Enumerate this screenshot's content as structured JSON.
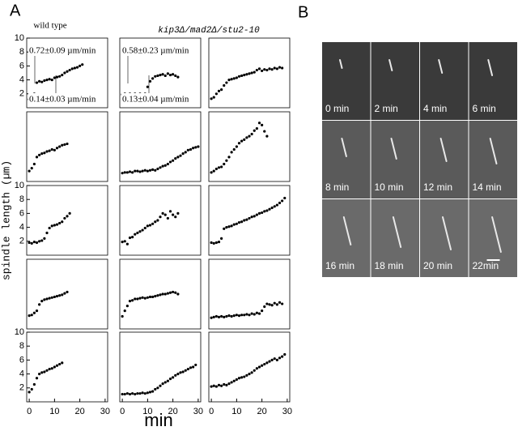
{
  "figure": {
    "panel_a": "A",
    "panel_b": "B",
    "y_label": "spindle length (µm)",
    "x_label": "min",
    "columns": [
      "wild type",
      "kip3Δ/mad2Δ/stu2-10"
    ],
    "frames": [
      "0 min",
      "2 min",
      "4 min",
      "6 min",
      "8 min",
      "10 min",
      "12 min",
      "14 min",
      "16 min",
      "18 min",
      "20 min",
      "22min"
    ]
  },
  "chart_data": [
    {
      "type": "scatter",
      "xlim": [
        -1,
        31
      ],
      "ylim": [
        0,
        10
      ],
      "yticks": [
        2,
        4,
        6,
        8,
        10
      ],
      "annotations": [
        "0.72±0.09 µm/min",
        "0.14±0.03 µm/min"
      ],
      "series": [
        {
          "color": "#000000",
          "x": [
            0,
            1,
            2,
            3,
            4,
            5,
            6,
            7,
            8,
            9,
            10,
            11,
            12,
            13,
            14,
            15,
            16,
            17,
            18,
            19,
            20,
            21
          ],
          "values": [
            1.2,
            1.6,
            2.0,
            3.6,
            3.8,
            3.7,
            3.9,
            4.0,
            4.1,
            4.0,
            4.3,
            4.4,
            4.5,
            4.7,
            5.0,
            5.2,
            5.4,
            5.6,
            5.7,
            5.8,
            6.0,
            6.2
          ]
        }
      ]
    },
    {
      "type": "scatter",
      "xlim": [
        -1,
        31
      ],
      "ylim": [
        0,
        10
      ],
      "annotations": [
        "0.58±0.23 µm/min",
        "0.13±0.04 µm/min"
      ],
      "series": [
        {
          "color": "#000000",
          "x": [
            0,
            1,
            2,
            3,
            4,
            5,
            6,
            7,
            8,
            9,
            10,
            11,
            12,
            13,
            14,
            15,
            16,
            17,
            18,
            19,
            20,
            21,
            22
          ],
          "values": [
            1.9,
            2.0,
            1.9,
            2.0,
            1.9,
            2.0,
            1.8,
            2.0,
            1.9,
            2.0,
            3.0,
            3.8,
            4.2,
            4.5,
            4.6,
            4.7,
            4.8,
            4.6,
            4.9,
            4.7,
            4.8,
            4.6,
            4.4
          ]
        }
      ]
    },
    {
      "type": "scatter",
      "xlim": [
        -1,
        31
      ],
      "ylim": [
        0,
        10
      ],
      "series": [
        {
          "color": "#000000",
          "x": [
            0,
            1,
            2,
            3,
            4,
            5,
            6,
            7,
            8,
            9,
            10,
            11,
            12,
            13,
            14,
            15,
            16,
            17,
            18,
            19,
            20,
            21,
            22,
            23,
            24,
            25,
            26,
            27,
            28
          ],
          "values": [
            1.3,
            1.5,
            2.0,
            2.4,
            2.6,
            3.2,
            3.6,
            4.0,
            4.1,
            4.2,
            4.3,
            4.5,
            4.6,
            4.7,
            4.8,
            4.9,
            5.0,
            5.1,
            5.4,
            5.6,
            5.3,
            5.5,
            5.4,
            5.6,
            5.5,
            5.7,
            5.6,
            5.8,
            5.7
          ]
        }
      ]
    },
    {
      "type": "scatter",
      "xlim": [
        -1,
        31
      ],
      "ylim": [
        0,
        10
      ],
      "series": [
        {
          "color": "#000000",
          "x": [
            0,
            1,
            2,
            3,
            4,
            5,
            6,
            7,
            8,
            9,
            10,
            11,
            12,
            13,
            14,
            15
          ],
          "values": [
            1.5,
            1.9,
            2.5,
            3.5,
            3.8,
            4.0,
            4.1,
            4.3,
            4.4,
            4.6,
            4.5,
            4.8,
            5.0,
            5.2,
            5.3,
            5.4
          ]
        }
      ]
    },
    {
      "type": "scatter",
      "xlim": [
        -1,
        31
      ],
      "ylim": [
        0,
        10
      ],
      "series": [
        {
          "color": "#000000",
          "x": [
            0,
            1,
            2,
            3,
            4,
            5,
            6,
            7,
            8,
            9,
            10,
            11,
            12,
            13,
            14,
            15,
            16,
            17,
            18,
            19,
            20,
            21,
            22,
            23,
            24,
            25,
            26,
            27,
            28,
            29,
            30
          ],
          "values": [
            1.2,
            1.3,
            1.3,
            1.4,
            1.3,
            1.5,
            1.5,
            1.4,
            1.5,
            1.6,
            1.5,
            1.6,
            1.7,
            1.6,
            1.8,
            2.0,
            2.2,
            2.3,
            2.5,
            2.8,
            3.0,
            3.3,
            3.5,
            3.7,
            4.0,
            4.2,
            4.5,
            4.6,
            4.8,
            4.9,
            5.0
          ]
        }
      ]
    },
    {
      "type": "scatter",
      "xlim": [
        -1,
        31
      ],
      "ylim": [
        0,
        10
      ],
      "series": [
        {
          "color": "#000000",
          "x": [
            0,
            1,
            2,
            3,
            4,
            5,
            6,
            7,
            8,
            9,
            10,
            11,
            12,
            13,
            14,
            15,
            16,
            17,
            18,
            19,
            20,
            21,
            22
          ],
          "values": [
            1.3,
            1.5,
            1.8,
            2.0,
            2.1,
            2.5,
            3.0,
            3.5,
            4.2,
            4.6,
            5.0,
            5.5,
            5.8,
            6.0,
            6.3,
            6.5,
            6.8,
            7.3,
            7.6,
            8.4,
            8.1,
            7.2,
            6.5
          ]
        }
      ]
    },
    {
      "type": "scatter",
      "xlim": [
        -1,
        31
      ],
      "ylim": [
        0,
        10
      ],
      "yticks": [
        2,
        4,
        6,
        8,
        10
      ],
      "series": [
        {
          "color": "#000000",
          "x": [
            0,
            1,
            2,
            3,
            4,
            5,
            6,
            7,
            8,
            9,
            10,
            11,
            12,
            13,
            14,
            15,
            16
          ],
          "values": [
            1.8,
            1.7,
            1.9,
            1.8,
            2.0,
            2.1,
            2.4,
            3.2,
            3.9,
            4.2,
            4.3,
            4.4,
            4.6,
            4.8,
            5.3,
            5.6,
            6.0
          ]
        }
      ]
    },
    {
      "type": "scatter",
      "xlim": [
        -1,
        31
      ],
      "ylim": [
        0,
        10
      ],
      "series": [
        {
          "color": "#000000",
          "x": [
            0,
            1,
            2,
            3,
            4,
            5,
            6,
            7,
            8,
            9,
            10,
            11,
            12,
            13,
            14,
            15,
            16,
            17,
            18,
            19,
            20,
            21,
            22
          ],
          "values": [
            1.9,
            2.0,
            1.6,
            2.5,
            2.6,
            3.0,
            3.2,
            3.4,
            3.6,
            3.9,
            4.2,
            4.3,
            4.5,
            4.8,
            5.0,
            5.5,
            6.0,
            5.8,
            5.3,
            6.3,
            5.8,
            5.5,
            6.0
          ]
        }
      ]
    },
    {
      "type": "scatter",
      "xlim": [
        -1,
        31
      ],
      "ylim": [
        0,
        10
      ],
      "series": [
        {
          "color": "#000000",
          "x": [
            0,
            1,
            2,
            3,
            4,
            5,
            6,
            7,
            8,
            9,
            10,
            11,
            12,
            13,
            14,
            15,
            16,
            17,
            18,
            19,
            20,
            21,
            22,
            23,
            24,
            25,
            26,
            27,
            28,
            29
          ],
          "values": [
            1.8,
            1.7,
            1.8,
            1.9,
            2.4,
            3.8,
            4.0,
            4.1,
            4.2,
            4.4,
            4.5,
            4.7,
            4.8,
            5.0,
            5.1,
            5.3,
            5.5,
            5.6,
            5.8,
            6.0,
            6.1,
            6.3,
            6.4,
            6.6,
            6.8,
            7.0,
            7.2,
            7.5,
            7.8,
            8.2
          ]
        }
      ]
    },
    {
      "type": "scatter",
      "xlim": [
        -1,
        31
      ],
      "ylim": [
        0,
        10
      ],
      "series": [
        {
          "color": "#000000",
          "x": [
            0,
            1,
            2,
            3,
            4,
            5,
            6,
            7,
            8,
            9,
            10,
            11,
            12,
            13,
            14,
            15
          ],
          "values": [
            1.9,
            2.0,
            2.3,
            2.6,
            3.5,
            4.0,
            4.2,
            4.3,
            4.4,
            4.5,
            4.6,
            4.7,
            4.8,
            4.9,
            5.1,
            5.3
          ]
        }
      ]
    },
    {
      "type": "scatter",
      "xlim": [
        -1,
        31
      ],
      "ylim": [
        0,
        10
      ],
      "series": [
        {
          "color": "#000000",
          "x": [
            0,
            1,
            2,
            3,
            4,
            5,
            6,
            7,
            8,
            9,
            10,
            11,
            12,
            13,
            14,
            15,
            16,
            17,
            18,
            19,
            20,
            21,
            22
          ],
          "values": [
            1.8,
            2.6,
            3.3,
            4.0,
            4.1,
            4.3,
            4.3,
            4.4,
            4.5,
            4.4,
            4.5,
            4.6,
            4.6,
            4.7,
            4.8,
            4.9,
            5.0,
            5.0,
            5.1,
            5.2,
            5.3,
            5.2,
            5.0
          ]
        }
      ]
    },
    {
      "type": "scatter",
      "xlim": [
        -1,
        31
      ],
      "ylim": [
        0,
        10
      ],
      "series": [
        {
          "color": "#000000",
          "x": [
            0,
            1,
            2,
            3,
            4,
            5,
            6,
            7,
            8,
            9,
            10,
            11,
            12,
            13,
            14,
            15,
            16,
            17,
            18,
            19,
            20,
            21,
            22,
            23,
            24,
            25,
            26,
            27,
            28
          ],
          "values": [
            1.6,
            1.7,
            1.8,
            1.7,
            1.8,
            1.7,
            1.8,
            1.9,
            1.8,
            1.9,
            2.0,
            1.9,
            2.0,
            2.0,
            2.1,
            2.0,
            2.2,
            2.1,
            2.3,
            2.2,
            2.6,
            3.2,
            3.6,
            3.5,
            3.4,
            3.7,
            3.5,
            3.8,
            3.6
          ]
        }
      ]
    },
    {
      "type": "scatter",
      "xlim": [
        -1,
        31
      ],
      "ylim": [
        0,
        10
      ],
      "yticks": [
        2,
        4,
        6,
        8,
        10
      ],
      "xticks": [
        0,
        10,
        20,
        30
      ],
      "series": [
        {
          "color": "#000000",
          "x": [
            0,
            1,
            2,
            3,
            4,
            5,
            6,
            7,
            8,
            9,
            10,
            11,
            12,
            13
          ],
          "values": [
            1.4,
            1.8,
            2.5,
            3.4,
            4.0,
            4.2,
            4.3,
            4.5,
            4.7,
            4.8,
            5.0,
            5.2,
            5.4,
            5.6
          ]
        }
      ]
    },
    {
      "type": "scatter",
      "xlim": [
        -1,
        31
      ],
      "ylim": [
        0,
        10
      ],
      "xticks": [
        0,
        10,
        20,
        30
      ],
      "series": [
        {
          "color": "#000000",
          "x": [
            0,
            1,
            2,
            3,
            4,
            5,
            6,
            7,
            8,
            9,
            10,
            11,
            12,
            13,
            14,
            15,
            16,
            17,
            18,
            19,
            20,
            21,
            22,
            23,
            24,
            25,
            26,
            27,
            28,
            29
          ],
          "values": [
            1.1,
            1.1,
            1.2,
            1.1,
            1.2,
            1.1,
            1.2,
            1.2,
            1.3,
            1.2,
            1.3,
            1.4,
            1.5,
            1.8,
            2.0,
            2.3,
            2.6,
            2.8,
            3.0,
            3.3,
            3.5,
            3.8,
            4.0,
            4.2,
            4.3,
            4.5,
            4.7,
            4.9,
            5.0,
            5.3
          ]
        }
      ]
    },
    {
      "type": "scatter",
      "xlim": [
        -1,
        31
      ],
      "ylim": [
        0,
        10
      ],
      "xticks": [
        0,
        10,
        20,
        30
      ],
      "series": [
        {
          "color": "#000000",
          "x": [
            0,
            1,
            2,
            3,
            4,
            5,
            6,
            7,
            8,
            9,
            10,
            11,
            12,
            13,
            14,
            15,
            16,
            17,
            18,
            19,
            20,
            21,
            22,
            23,
            24,
            25,
            26,
            27,
            28,
            29
          ],
          "values": [
            2.2,
            2.3,
            2.2,
            2.4,
            2.3,
            2.5,
            2.4,
            2.6,
            2.8,
            3.0,
            3.2,
            3.4,
            3.5,
            3.6,
            3.8,
            4.0,
            4.2,
            4.5,
            4.8,
            5.0,
            5.2,
            5.4,
            5.6,
            5.8,
            6.0,
            6.2,
            6.0,
            6.3,
            6.5,
            6.8
          ]
        }
      ]
    }
  ]
}
